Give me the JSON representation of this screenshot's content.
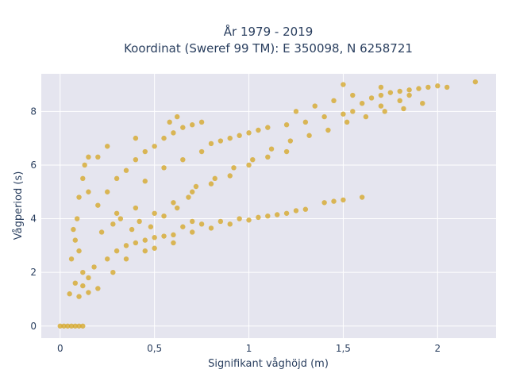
{
  "chart_data": {
    "type": "scatter",
    "title_lines": [
      "År 1979 - 2019",
      "Koordinat (Sweref 99 TM): E 350098, N 6258721"
    ],
    "xlabel": "Signifikant våghöjd (m)",
    "ylabel": "Vågperiod (s)",
    "xlim": [
      -0.1,
      2.31
    ],
    "ylim": [
      -0.45,
      9.4
    ],
    "x_ticks": [
      0,
      0.5,
      1,
      1.5,
      2
    ],
    "x_tick_labels": [
      "0",
      "0,5",
      "1",
      "1,5",
      "2"
    ],
    "y_ticks": [
      0,
      2,
      4,
      6,
      8
    ],
    "y_tick_labels": [
      "0",
      "2",
      "4",
      "6",
      "8"
    ],
    "grid": true,
    "legend": "none",
    "series": [
      {
        "marker_color": "#d4a420",
        "points": [
          [
            0.0,
            0.0
          ],
          [
            0.02,
            0.0
          ],
          [
            0.04,
            0.0
          ],
          [
            0.06,
            0.0
          ],
          [
            0.08,
            0.0
          ],
          [
            0.1,
            0.0
          ],
          [
            0.12,
            0.0
          ],
          [
            0.05,
            1.2
          ],
          [
            0.1,
            1.1
          ],
          [
            0.15,
            1.25
          ],
          [
            0.2,
            1.4
          ],
          [
            0.08,
            1.6
          ],
          [
            0.12,
            2.0
          ],
          [
            0.18,
            2.2
          ],
          [
            0.25,
            2.5
          ],
          [
            0.3,
            2.8
          ],
          [
            0.35,
            3.0
          ],
          [
            0.4,
            3.1
          ],
          [
            0.45,
            3.2
          ],
          [
            0.5,
            3.3
          ],
          [
            0.55,
            3.35
          ],
          [
            0.6,
            3.4
          ],
          [
            0.7,
            3.5
          ],
          [
            0.8,
            3.65
          ],
          [
            0.9,
            3.8
          ],
          [
            1.0,
            3.95
          ],
          [
            1.05,
            4.05
          ],
          [
            1.1,
            4.1
          ],
          [
            1.2,
            4.2
          ],
          [
            1.25,
            4.3
          ],
          [
            0.06,
            2.5
          ],
          [
            0.08,
            3.2
          ],
          [
            0.09,
            4.0
          ],
          [
            0.1,
            4.8
          ],
          [
            0.12,
            5.5
          ],
          [
            0.13,
            6.0
          ],
          [
            0.15,
            6.3
          ],
          [
            0.2,
            4.5
          ],
          [
            0.25,
            5.0
          ],
          [
            0.3,
            5.5
          ],
          [
            0.35,
            5.8
          ],
          [
            0.4,
            6.2
          ],
          [
            0.45,
            6.5
          ],
          [
            0.5,
            6.7
          ],
          [
            0.55,
            7.0
          ],
          [
            0.6,
            7.2
          ],
          [
            0.65,
            7.4
          ],
          [
            0.7,
            7.5
          ],
          [
            0.75,
            7.6
          ],
          [
            0.8,
            6.8
          ],
          [
            0.9,
            7.0
          ],
          [
            1.0,
            7.2
          ],
          [
            1.1,
            7.4
          ],
          [
            1.2,
            7.5
          ],
          [
            1.3,
            7.6
          ],
          [
            1.4,
            7.8
          ],
          [
            1.5,
            7.9
          ],
          [
            1.55,
            8.0
          ],
          [
            1.6,
            8.3
          ],
          [
            1.65,
            8.5
          ],
          [
            1.7,
            8.6
          ],
          [
            1.75,
            8.7
          ],
          [
            1.8,
            8.75
          ],
          [
            1.85,
            8.8
          ],
          [
            1.9,
            8.85
          ],
          [
            1.95,
            8.9
          ],
          [
            2.0,
            8.95
          ],
          [
            2.05,
            8.9
          ],
          [
            2.2,
            9.1
          ],
          [
            1.6,
            4.8
          ],
          [
            1.5,
            4.7
          ],
          [
            1.45,
            4.65
          ],
          [
            1.4,
            4.6
          ],
          [
            0.3,
            4.2
          ],
          [
            0.4,
            4.4
          ],
          [
            0.5,
            4.2
          ],
          [
            0.6,
            4.6
          ],
          [
            0.7,
            5.0
          ],
          [
            0.8,
            5.3
          ],
          [
            0.9,
            5.6
          ],
          [
            1.0,
            6.0
          ],
          [
            1.1,
            6.3
          ],
          [
            1.2,
            6.5
          ],
          [
            0.25,
            6.7
          ],
          [
            0.2,
            6.3
          ],
          [
            0.15,
            5.0
          ],
          [
            0.22,
            3.5
          ],
          [
            0.28,
            3.8
          ],
          [
            0.32,
            4.0
          ],
          [
            0.38,
            3.6
          ],
          [
            0.42,
            3.9
          ],
          [
            0.48,
            3.7
          ],
          [
            0.35,
            2.5
          ],
          [
            0.28,
            2.0
          ],
          [
            0.15,
            1.8
          ],
          [
            0.12,
            1.5
          ],
          [
            0.1,
            2.8
          ],
          [
            0.07,
            3.6
          ],
          [
            0.45,
            5.4
          ],
          [
            0.55,
            5.9
          ],
          [
            0.65,
            6.2
          ],
          [
            0.75,
            6.5
          ],
          [
            0.85,
            6.9
          ],
          [
            0.95,
            7.1
          ],
          [
            1.05,
            7.3
          ],
          [
            0.58,
            7.6
          ],
          [
            0.62,
            7.8
          ],
          [
            0.4,
            7.0
          ],
          [
            1.7,
            8.2
          ],
          [
            1.8,
            8.4
          ],
          [
            1.85,
            8.6
          ],
          [
            1.55,
            8.6
          ],
          [
            1.45,
            8.4
          ],
          [
            1.35,
            8.2
          ],
          [
            1.25,
            8.0
          ],
          [
            0.7,
            3.9
          ],
          [
            0.65,
            3.7
          ],
          [
            0.75,
            3.8
          ],
          [
            0.85,
            3.9
          ],
          [
            0.95,
            4.0
          ],
          [
            1.15,
            4.15
          ],
          [
            1.3,
            4.35
          ],
          [
            0.5,
            2.9
          ],
          [
            0.6,
            3.1
          ],
          [
            0.45,
            2.8
          ],
          [
            0.55,
            4.1
          ],
          [
            0.62,
            4.4
          ],
          [
            0.68,
            4.8
          ],
          [
            0.72,
            5.2
          ],
          [
            0.82,
            5.5
          ],
          [
            0.92,
            5.9
          ],
          [
            1.02,
            6.2
          ],
          [
            1.12,
            6.6
          ],
          [
            1.22,
            6.9
          ],
          [
            1.32,
            7.1
          ],
          [
            1.42,
            7.3
          ],
          [
            1.52,
            7.6
          ],
          [
            1.62,
            7.8
          ],
          [
            1.72,
            8.0
          ],
          [
            1.82,
            8.1
          ],
          [
            1.92,
            8.3
          ],
          [
            1.5,
            9.0
          ],
          [
            1.7,
            8.9
          ]
        ]
      }
    ]
  }
}
